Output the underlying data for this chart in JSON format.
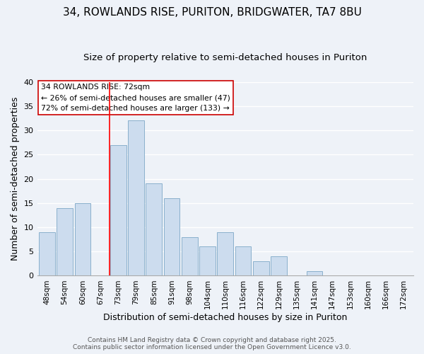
{
  "title": "34, ROWLANDS RISE, PURITON, BRIDGWATER, TA7 8BU",
  "subtitle": "Size of property relative to semi-detached houses in Puriton",
  "xlabel": "Distribution of semi-detached houses by size in Puriton",
  "ylabel": "Number of semi-detached properties",
  "bar_labels": [
    "48sqm",
    "54sqm",
    "60sqm",
    "67sqm",
    "73sqm",
    "79sqm",
    "85sqm",
    "91sqm",
    "98sqm",
    "104sqm",
    "110sqm",
    "116sqm",
    "122sqm",
    "129sqm",
    "135sqm",
    "141sqm",
    "147sqm",
    "153sqm",
    "160sqm",
    "166sqm",
    "172sqm"
  ],
  "bar_values": [
    9,
    14,
    15,
    0,
    27,
    32,
    19,
    16,
    8,
    6,
    9,
    6,
    3,
    4,
    0,
    1,
    0,
    0,
    0,
    0,
    0
  ],
  "bar_color": "#ccdcee",
  "bar_edge_color": "#8ab0cc",
  "red_line_index": 4,
  "annotation_title": "34 ROWLANDS RISE: 72sqm",
  "annotation_line1": "← 26% of semi-detached houses are smaller (47)",
  "annotation_line2": "72% of semi-detached houses are larger (133) →",
  "annotation_box_color": "#ffffff",
  "annotation_box_edge": "#cc0000",
  "ylim": [
    0,
    40
  ],
  "yticks": [
    0,
    5,
    10,
    15,
    20,
    25,
    30,
    35,
    40
  ],
  "footer_line1": "Contains HM Land Registry data © Crown copyright and database right 2025.",
  "footer_line2": "Contains public sector information licensed under the Open Government Licence v3.0.",
  "bg_color": "#eef2f8",
  "grid_color": "#ffffff",
  "title_fontsize": 11,
  "subtitle_fontsize": 9.5,
  "tick_fontsize": 7.5,
  "axis_label_fontsize": 9
}
